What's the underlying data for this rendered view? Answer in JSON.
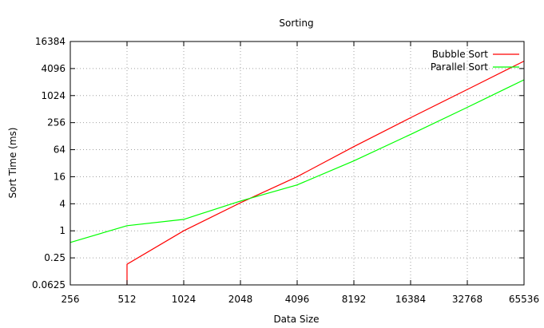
{
  "chart_data": {
    "type": "line",
    "title": "Sorting",
    "xlabel": "Data Size",
    "ylabel": "Sort Time (ms)",
    "x_scale": "log2",
    "y_scale": "log2",
    "xlim": [
      256,
      65536
    ],
    "ylim": [
      0.0625,
      16384
    ],
    "x_ticks": [
      256,
      512,
      1024,
      2048,
      4096,
      8192,
      16384,
      32768,
      65536
    ],
    "x_tick_labels": [
      "256",
      "512",
      "1024",
      "2048",
      "4096",
      "8192",
      "16384",
      "32768",
      "65536"
    ],
    "y_ticks": [
      0.0625,
      0.25,
      1,
      4,
      16,
      64,
      256,
      1024,
      4096,
      16384
    ],
    "y_tick_labels": [
      "0.0625",
      "0.25",
      "1",
      "4",
      "16",
      "64",
      "256",
      "1024",
      "4096",
      "16384"
    ],
    "grid": true,
    "legend_position": "top-right",
    "series": [
      {
        "name": "Bubble Sort",
        "color": "#ff0000",
        "x": [
          512,
          512,
          1024,
          2048,
          4096,
          8192,
          16384,
          32768,
          65536
        ],
        "y": [
          0.0625,
          0.18,
          1,
          4.2,
          16,
          75,
          330,
          1400,
          6000
        ]
      },
      {
        "name": "Parallel Sort",
        "color": "#00ff00",
        "x": [
          256,
          512,
          1024,
          2048,
          4096,
          8192,
          16384,
          32768,
          65536
        ],
        "y": [
          0.55,
          1.3,
          1.8,
          4.6,
          10.5,
          36,
          140,
          560,
          2300
        ]
      }
    ]
  }
}
